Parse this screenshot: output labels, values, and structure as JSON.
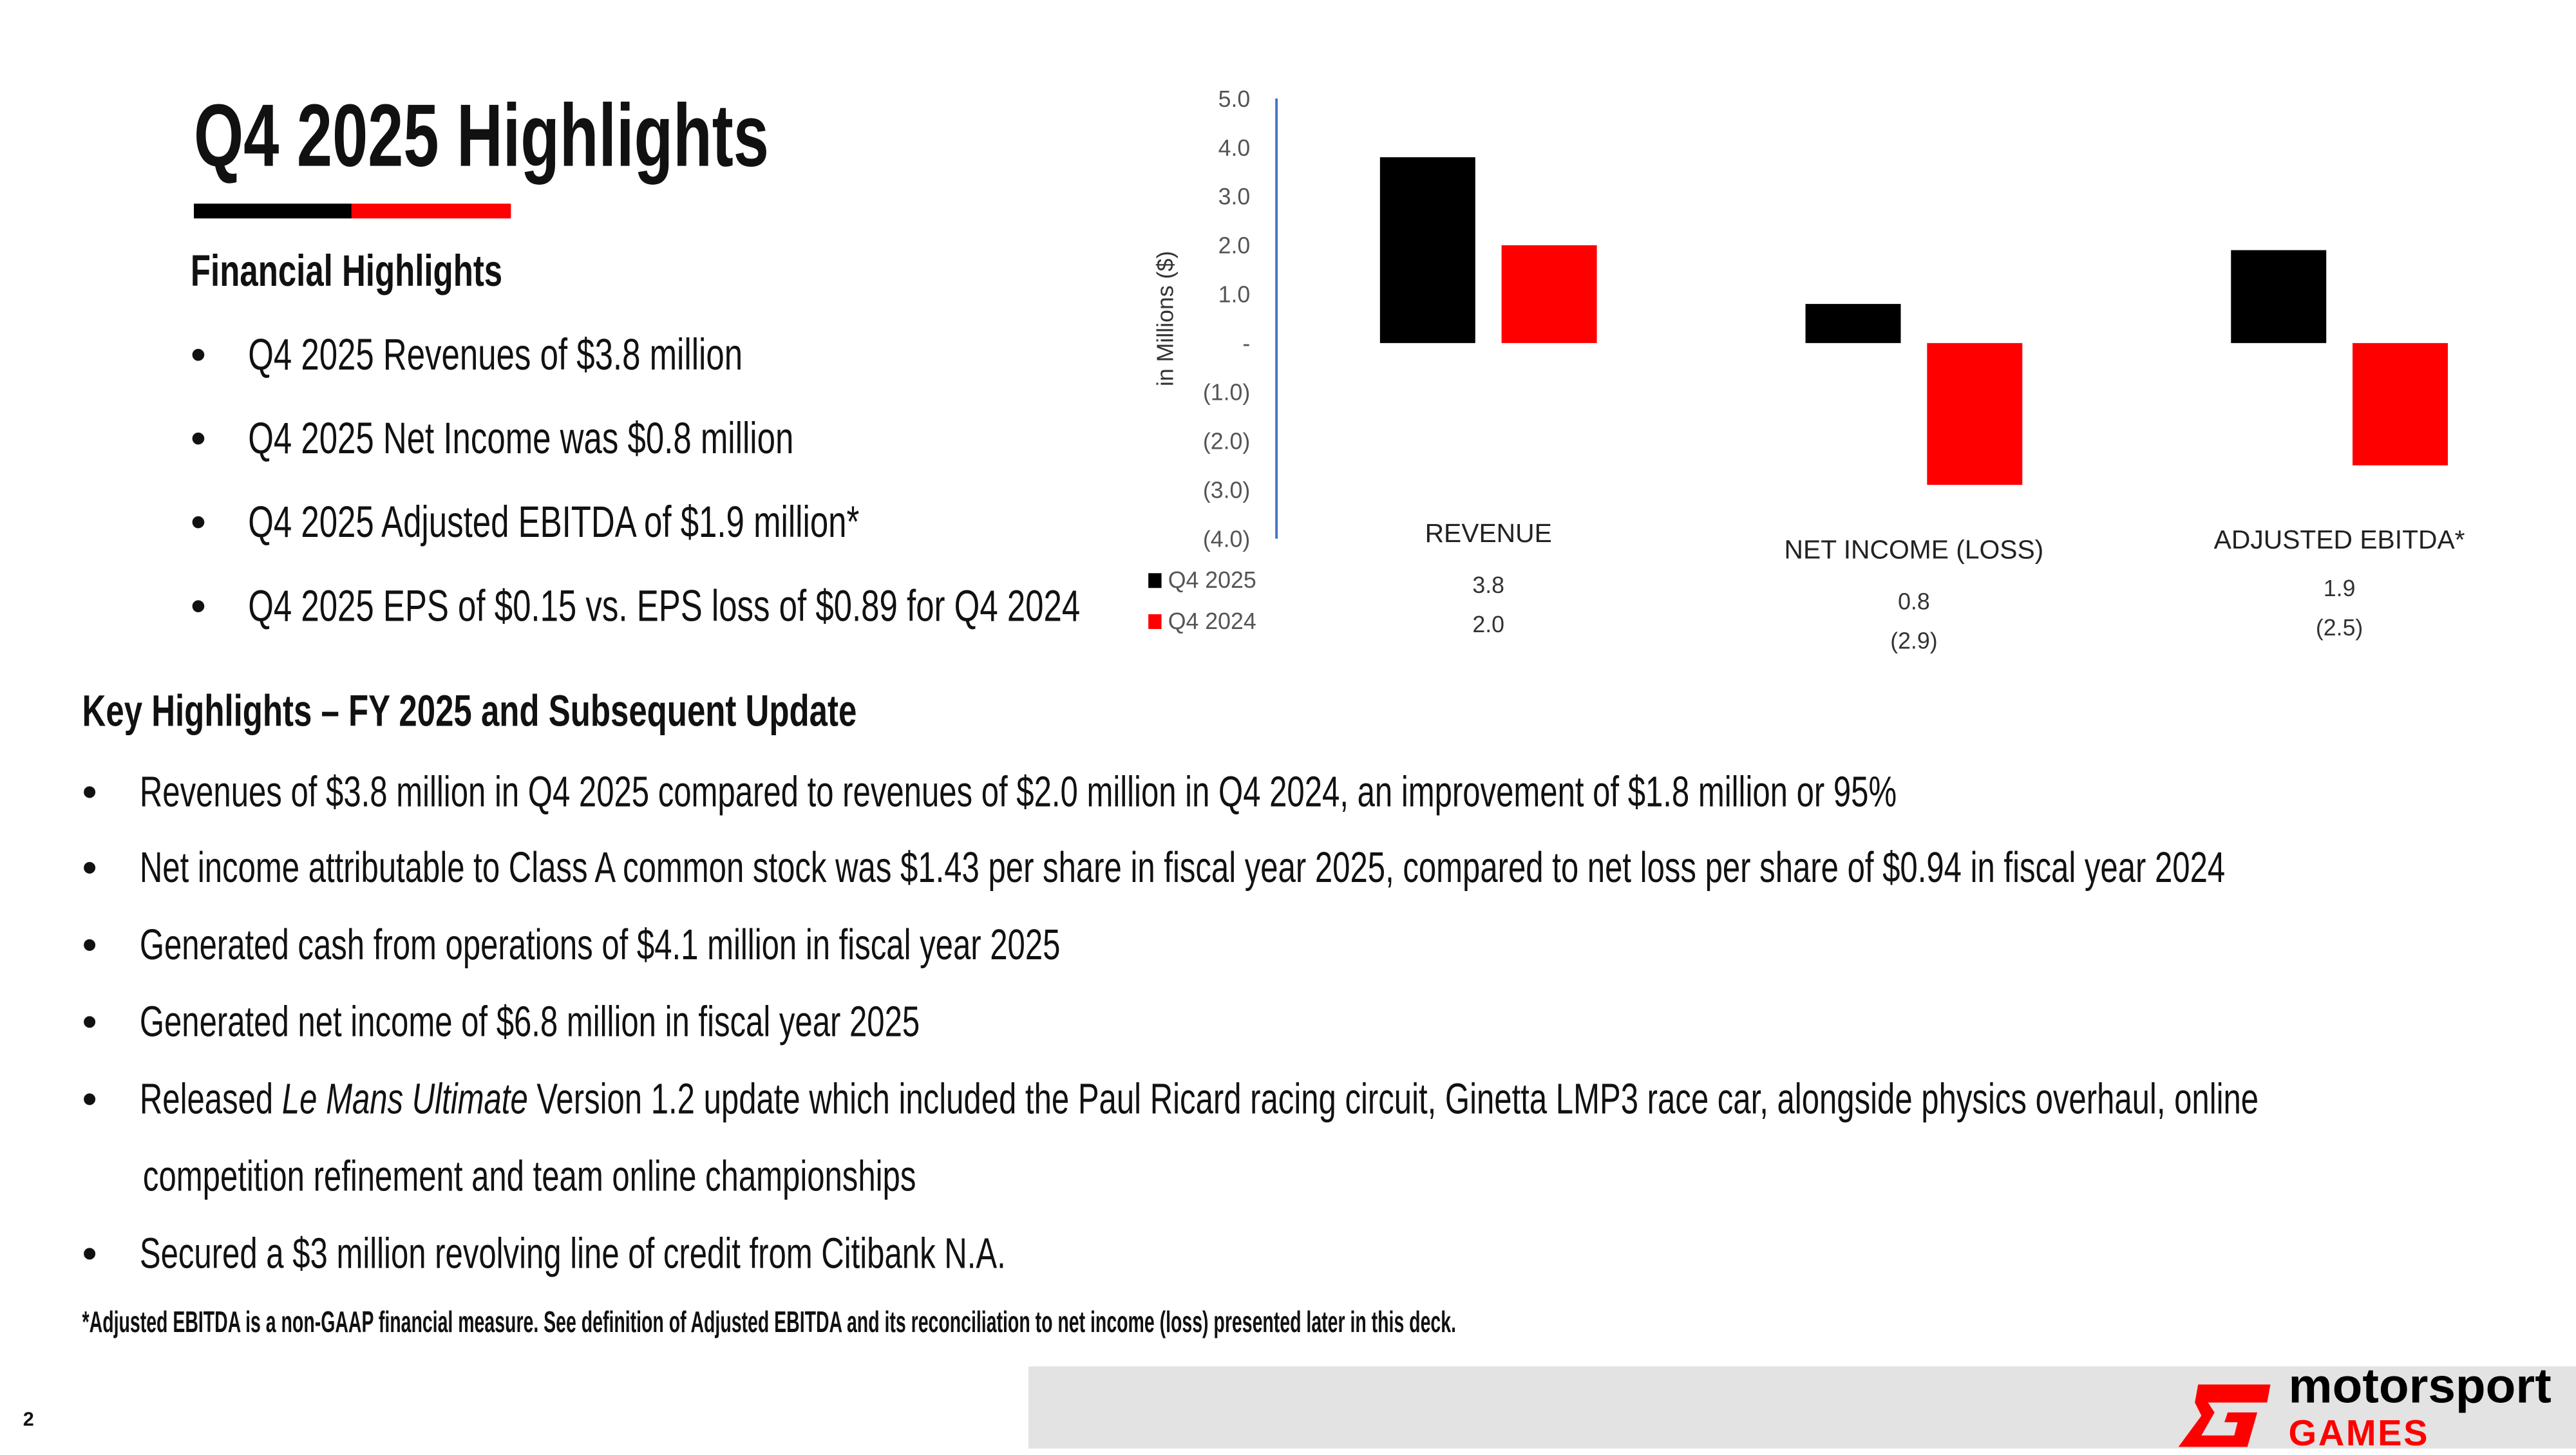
{
  "page_number": "2",
  "title": "Q4 2025 Highlights",
  "financial": {
    "heading": "Financial Highlights",
    "bullets": [
      "Q4 2025 Revenues of $3.8 million",
      "Q4 2025 Net Income was $0.8 million",
      "Q4 2025 Adjusted EBITDA of $1.9 million*",
      "Q4 2025 EPS of $0.15 vs. EPS loss of $0.89 for Q4 2024"
    ]
  },
  "key": {
    "heading": "Key Highlights – FY 2025 and Subsequent Update",
    "bullets": [
      "Revenues of $3.8 million in Q4 2025 compared to revenues of $2.0 million in Q4 2024, an improvement of $1.8 million or 95%",
      "Net income attributable to Class A common stock was $1.43 per share in fiscal year 2025, compared to net loss per share of $0.94 in fiscal year 2024",
      "Generated cash from operations of $4.1 million in fiscal year 2025",
      "Generated net income of $6.8 million in fiscal year 2025"
    ],
    "release": {
      "pre": "Released ",
      "italic": "Le Mans Ultimate",
      "post": " Version 1.2 update which included the Paul Ricard racing circuit, Ginetta LMP3 race car, alongside physics overhaul, online",
      "line2": "competition refinement and team online championships"
    },
    "last": "Secured a $3 million revolving line of credit from Citibank N.A."
  },
  "footnote": "*Adjusted EBITDA is a non-GAAP financial measure. See definition of Adjusted EBITDA and its reconciliation to net income (loss) presented later in this deck.",
  "logo": {
    "line1": "motorsport",
    "line2": "GAMES"
  },
  "colors": {
    "accent": "#ff0000",
    "black": "#000000",
    "axis": "#4472c4"
  },
  "chart_data": {
    "type": "bar",
    "ylabel": "in Millions ($)",
    "ylim": [
      -4,
      5
    ],
    "yticks": [
      "5.0",
      "4.0",
      "3.0",
      "2.0",
      "1.0",
      "-",
      "(1.0)",
      "(2.0)",
      "(3.0)",
      "(4.0)"
    ],
    "categories": [
      "REVENUE",
      "NET INCOME (LOSS)",
      "ADJUSTED EBITDA*"
    ],
    "series": [
      {
        "name": "Q4 2025",
        "color": "#000000",
        "values": [
          3.8,
          0.8,
          1.9
        ],
        "labels": [
          "3.8",
          "0.8",
          "1.9"
        ]
      },
      {
        "name": "Q4 2024",
        "color": "#ff0000",
        "values": [
          2.0,
          -2.9,
          -2.5
        ],
        "labels": [
          "2.0",
          "(2.9)",
          "(2.5)"
        ]
      }
    ]
  }
}
